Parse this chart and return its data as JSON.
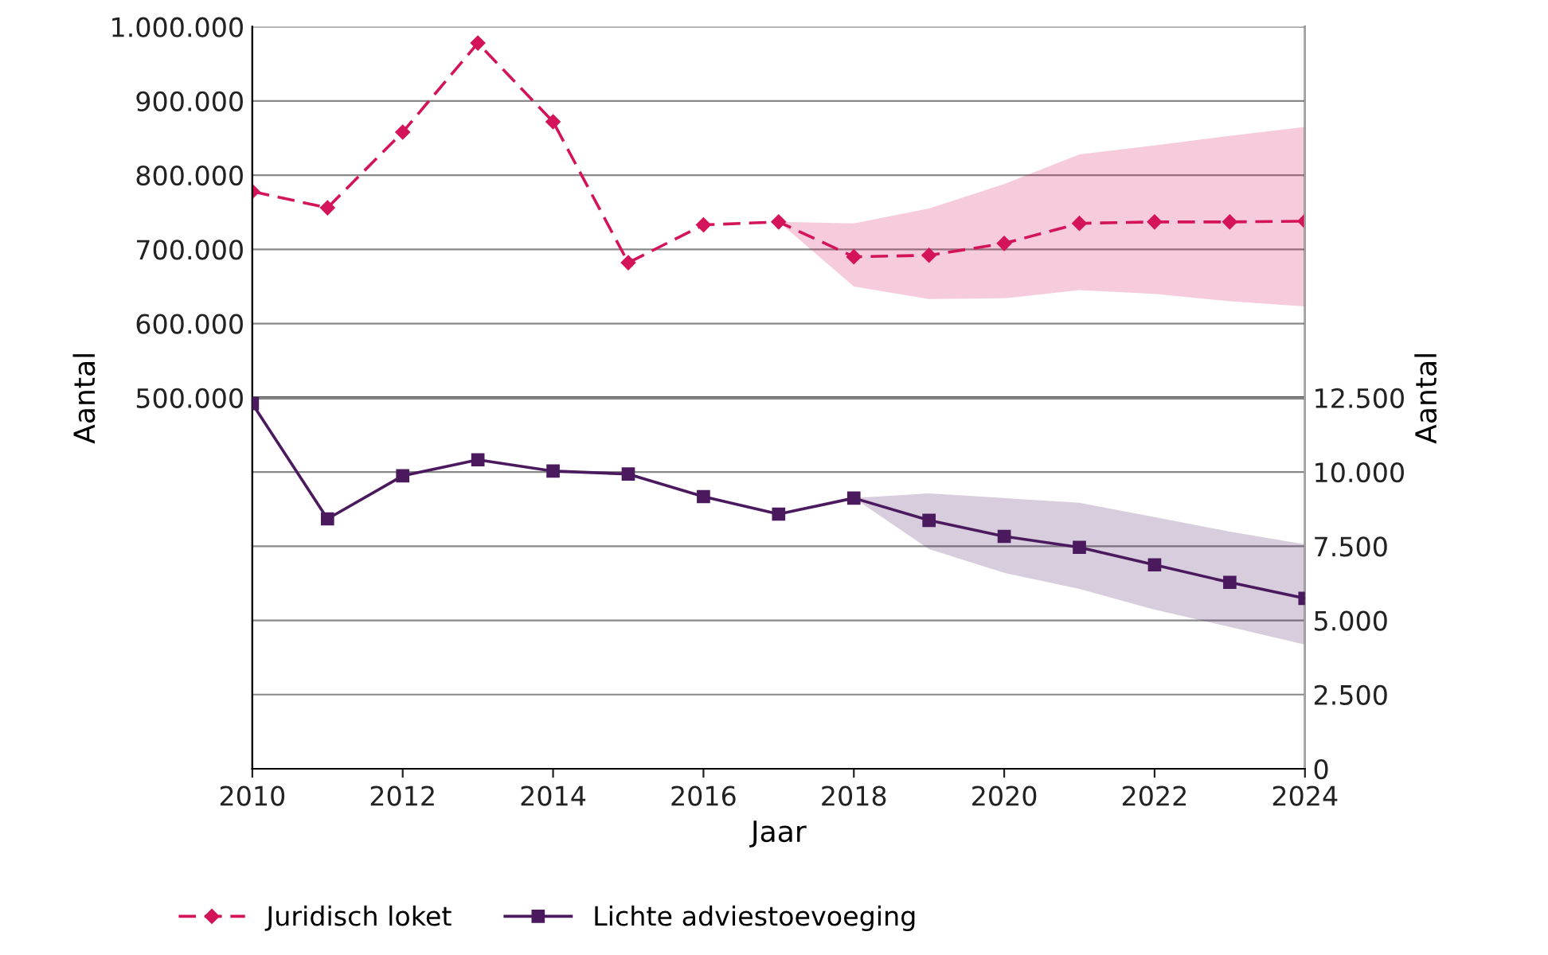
{
  "chart_data": {
    "type": "line",
    "xlabel": "Jaar",
    "ylabel": "Aantal",
    "y2label": "Aantal",
    "x": [
      2010,
      2011,
      2012,
      2013,
      2014,
      2015,
      2016,
      2017,
      2018,
      2019,
      2020,
      2021,
      2022,
      2023,
      2024
    ],
    "xlim": [
      2010,
      2024
    ],
    "xticks": [
      2010,
      2012,
      2014,
      2016,
      2018,
      2020,
      2022,
      2024
    ],
    "ylim": [
      0,
      1000000
    ],
    "yticks": [
      {
        "value": 500000,
        "label": "500.000"
      },
      {
        "value": 600000,
        "label": "600.000"
      },
      {
        "value": 700000,
        "label": "700.000"
      },
      {
        "value": 800000,
        "label": "800.000"
      },
      {
        "value": 900000,
        "label": "900.000"
      },
      {
        "value": 1000000,
        "label": "1.000.000"
      }
    ],
    "y2lim": [
      0,
      25000
    ],
    "y2ticks": [
      0,
      {
        "value": 2500,
        "label": "2.500"
      },
      {
        "value": 5000,
        "label": "5.000"
      },
      {
        "value": 7500,
        "label": "7.500"
      },
      {
        "value": 10000,
        "label": "10.000"
      },
      {
        "value": 12500,
        "label": "12.500"
      }
    ],
    "grid": "y",
    "legend": "bottom",
    "ref_lines": [
      {
        "axis": "y",
        "value": 500000,
        "color": "#000000"
      }
    ],
    "series": [
      {
        "name": "Juridisch loket",
        "color": "#d4145a",
        "marker": "diamond",
        "line_style": "dashed",
        "values": [
          778000,
          756000,
          858000,
          978000,
          872000,
          682000,
          733000,
          737000,
          690000,
          692000,
          708000,
          735000,
          737000,
          737000,
          738000
        ],
        "lower": [
          null,
          null,
          null,
          null,
          null,
          null,
          null,
          737000,
          650000,
          633000,
          634000,
          645000,
          640000,
          630000,
          623000
        ],
        "upper": [
          null,
          null,
          null,
          null,
          null,
          null,
          null,
          737000,
          735000,
          755000,
          788000,
          828000,
          840000,
          853000,
          865000
        ]
      },
      {
        "name": "Lichte adviestoevoeging",
        "color": "#4b1a5e",
        "marker": "square",
        "line_style": "solid",
        "axis": "y2",
        "values": [
          12300,
          8420,
          9870,
          10410,
          10030,
          9930,
          9170,
          8580,
          9120,
          8370,
          7830,
          7460,
          6870,
          6280,
          5740
        ],
        "lower": [
          null,
          null,
          null,
          null,
          null,
          null,
          null,
          null,
          9120,
          7400,
          6600,
          6060,
          5360,
          4780,
          4180
        ],
        "upper": [
          null,
          null,
          null,
          null,
          null,
          null,
          null,
          null,
          9120,
          9280,
          9120,
          8960,
          8480,
          7990,
          7560
        ]
      }
    ]
  }
}
